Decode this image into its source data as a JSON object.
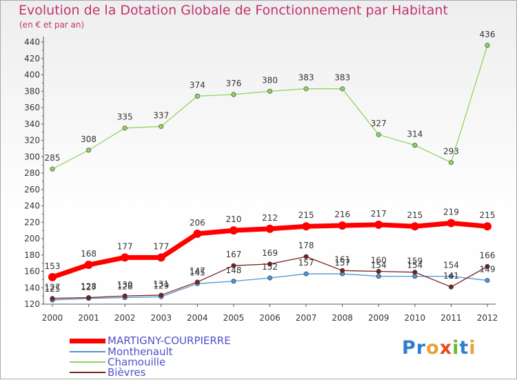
{
  "title": "Evolution de la Dotation Globale de Fonctionnement par Habitant",
  "subtitle": "(en € et par an)",
  "logo_text": "Proxiti",
  "chart_data": {
    "type": "line",
    "x": [
      "2000",
      "2001",
      "2002",
      "2003",
      "2004",
      "2005",
      "2006",
      "2007",
      "2008",
      "2009",
      "2010",
      "2011",
      "2012"
    ],
    "ylim": [
      120,
      440
    ],
    "yticks": [
      120,
      140,
      160,
      180,
      200,
      220,
      240,
      260,
      280,
      300,
      320,
      340,
      360,
      380,
      400,
      420,
      440
    ],
    "grid": false,
    "legend_position": "bottom-left",
    "series": [
      {
        "name": "MARTIGNY-COURPIERRE",
        "color": "#ff0000",
        "values": [
          153,
          168,
          177,
          177,
          206,
          210,
          212,
          215,
          216,
          217,
          215,
          219,
          215
        ]
      },
      {
        "name": "Monthenault",
        "color": "#4d94d1",
        "values": [
          125,
          127,
          128,
          129,
          145,
          148,
          152,
          157,
          157,
          154,
          154,
          154,
          149
        ]
      },
      {
        "name": "Chamouille",
        "color": "#8fd45f",
        "values": [
          285,
          308,
          335,
          337,
          374,
          376,
          380,
          383,
          383,
          327,
          314,
          293,
          436
        ]
      },
      {
        "name": "Bièvres",
        "color": "#7a1f1f",
        "values": [
          127,
          128,
          130,
          131,
          147,
          167,
          169,
          178,
          161,
          160,
          159,
          141,
          166
        ]
      }
    ]
  }
}
